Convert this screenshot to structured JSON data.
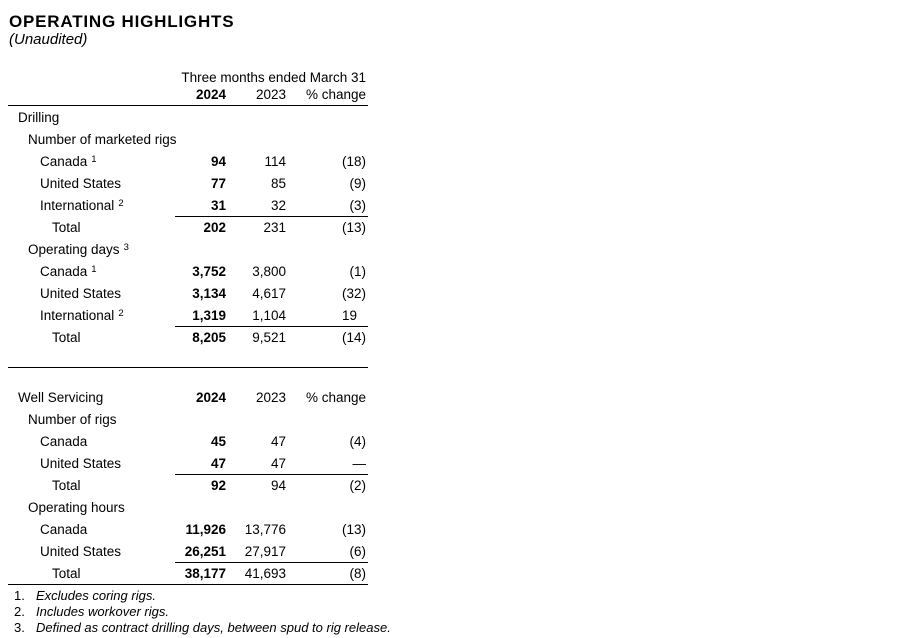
{
  "page": {
    "title": "OPERATING HIGHLIGHTS",
    "subtitle": "(Unaudited)"
  },
  "table": {
    "period_header": "Three months ended March 31",
    "columns": [
      "2024",
      "2023",
      "% change"
    ],
    "sections": [
      {
        "name": "drilling",
        "rows": [
          {
            "type": "section",
            "label": "Drilling"
          },
          {
            "type": "subsection",
            "label": "Number of marketed rigs"
          },
          {
            "type": "data",
            "label": "Canada",
            "sup": "1",
            "v2024": "94",
            "v2023": "114",
            "change": "(18)"
          },
          {
            "type": "data",
            "label": "United States",
            "v2024": "77",
            "v2023": "85",
            "change": "(9)"
          },
          {
            "type": "data",
            "label": "International",
            "sup": "2",
            "v2024": "31",
            "v2023": "32",
            "change": "(3)"
          },
          {
            "type": "total",
            "label": "Total",
            "v2024": "202",
            "v2023": "231",
            "change": "(13)"
          },
          {
            "type": "subsection",
            "label": "Operating days",
            "sup": "3"
          },
          {
            "type": "data",
            "label": "Canada",
            "sup": "1",
            "v2024": "3,752",
            "v2023": "3,800",
            "change": "(1)"
          },
          {
            "type": "data",
            "label": "United States",
            "v2024": "3,134",
            "v2023": "4,617",
            "change": "(32)"
          },
          {
            "type": "data",
            "label": "International",
            "sup": "2",
            "v2024": "1,319",
            "v2023": "1,104",
            "change": "19"
          },
          {
            "type": "total",
            "label": "Total",
            "v2024": "8,205",
            "v2023": "9,521",
            "change": "(14)"
          }
        ]
      },
      {
        "name": "well-servicing",
        "rows": [
          {
            "type": "colheader",
            "label": "Well Servicing",
            "v2024": "2024",
            "v2023": "2023",
            "change": "% change"
          },
          {
            "type": "subsection",
            "label": "Number of rigs"
          },
          {
            "type": "data",
            "label": "Canada",
            "v2024": "45",
            "v2023": "47",
            "change": "(4)"
          },
          {
            "type": "data",
            "label": "United States",
            "v2024": "47",
            "v2023": "47",
            "change": "—"
          },
          {
            "type": "total",
            "label": "Total",
            "v2024": "92",
            "v2023": "94",
            "change": "(2)"
          },
          {
            "type": "subsection",
            "label": "Operating hours"
          },
          {
            "type": "data",
            "label": "Canada",
            "v2024": "11,926",
            "v2023": "13,776",
            "change": "(13)"
          },
          {
            "type": "data",
            "label": "United States",
            "v2024": "26,251",
            "v2023": "27,917",
            "change": "(6)"
          },
          {
            "type": "total",
            "label": "Total",
            "v2024": "38,177",
            "v2023": "41,693",
            "change": "(8)"
          }
        ]
      }
    ],
    "footnotes": [
      {
        "num": "1.",
        "text": "Excludes coring rigs."
      },
      {
        "num": "2.",
        "text": "Includes workover rigs."
      },
      {
        "num": "3.",
        "text": "Defined as contract drilling days, between spud to rig release."
      }
    ]
  }
}
